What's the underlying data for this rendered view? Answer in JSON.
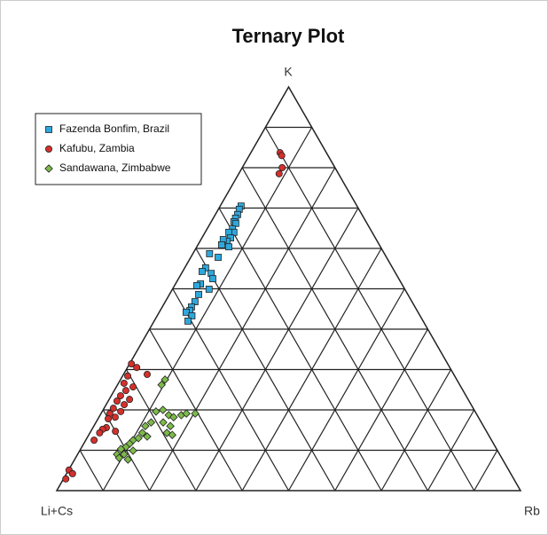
{
  "chart_data": {
    "type": "ternary",
    "title": "Ternary Plot",
    "vertices": {
      "top": "K",
      "left": "Li+Cs",
      "right": "Rb"
    },
    "grid": true,
    "grid_divisions": 10,
    "legend": "upper left",
    "series": [
      {
        "name": "Fazenda Bonfim, Brazil",
        "color": "#2ea8dc",
        "marker": "square",
        "k": [
          0.705,
          0.697,
          0.684,
          0.675,
          0.666,
          0.662,
          0.648,
          0.64,
          0.64,
          0.626,
          0.618,
          0.622,
          0.609,
          0.604,
          0.587,
          0.578,
          0.552,
          0.543,
          0.538,
          0.525,
          0.512,
          0.508,
          0.499,
          0.486,
          0.468,
          0.455,
          0.446,
          0.442,
          0.433,
          0.42
        ],
        "rb": [
          0.045,
          0.045,
          0.048,
          0.048,
          0.049,
          0.055,
          0.055,
          0.062,
          0.051,
          0.062,
          0.058,
          0.048,
          0.051,
          0.069,
          0.036,
          0.059,
          0.045,
          0.042,
          0.064,
          0.074,
          0.054,
          0.048,
          0.079,
          0.063,
          0.064,
          0.063,
          0.064,
          0.058,
          0.075,
          0.073
        ]
      },
      {
        "name": "Kafubu, Zambia",
        "color": "#d4302c",
        "marker": "circle",
        "k": [
          0.837,
          0.83,
          0.8,
          0.785,
          0.314,
          0.305,
          0.288,
          0.284,
          0.266,
          0.257,
          0.248,
          0.235,
          0.226,
          0.222,
          0.213,
          0.204,
          0.196,
          0.191,
          0.182,
          0.178,
          0.156,
          0.152,
          0.143,
          0.125,
          0.147,
          0.051,
          0.042,
          0.029
        ],
        "rb": [
          0.063,
          0.07,
          0.086,
          0.087,
          0.004,
          0.02,
          0.051,
          0.011,
          0.012,
          0.036,
          0.025,
          0.02,
          0.044,
          0.019,
          0.039,
          0.02,
          0.04,
          0.019,
          0.035,
          0.022,
          0.029,
          0.023,
          0.021,
          0.018,
          0.053,
          0.001,
          0.013,
          0.005
        ]
      },
      {
        "name": "Sandawana, Zimbabwe",
        "color": "#7cba4a",
        "marker": "diamond",
        "k": [
          0.275,
          0.262,
          0.196,
          0.2,
          0.187,
          0.182,
          0.187,
          0.191,
          0.191,
          0.169,
          0.16,
          0.143,
          0.138,
          0.16,
          0.169,
          0.143,
          0.134,
          0.13,
          0.125,
          0.116,
          0.108,
          0.103,
          0.099,
          0.09,
          0.09,
          0.077,
          0.081
        ],
        "rb": [
          0.096,
          0.095,
          0.116,
          0.129,
          0.148,
          0.161,
          0.175,
          0.184,
          0.203,
          0.145,
          0.165,
          0.166,
          0.18,
          0.111,
          0.119,
          0.113,
          0.128,
          0.111,
          0.102,
          0.099,
          0.095,
          0.087,
          0.115,
          0.085,
          0.1,
          0.115,
          0.094
        ]
      }
    ]
  }
}
